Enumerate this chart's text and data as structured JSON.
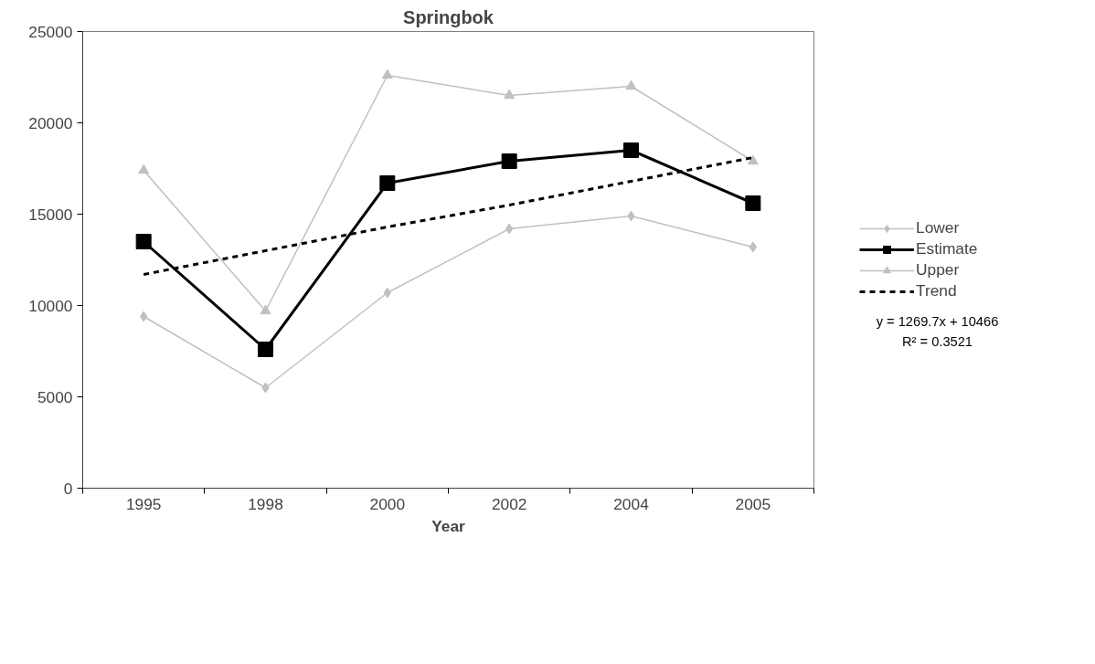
{
  "chart_data": {
    "type": "line",
    "title": "Springbok",
    "xlabel": "Year",
    "categories": [
      "1995",
      "1998",
      "2000",
      "2002",
      "2004",
      "2005"
    ],
    "series": [
      {
        "name": "Lower",
        "color": "#c0c0c0",
        "marker": "diamond",
        "line_style": "solid",
        "values": [
          9400,
          5500,
          10700,
          14200,
          14900,
          13200
        ]
      },
      {
        "name": "Estimate",
        "color": "#000000",
        "marker": "square",
        "line_style": "solid",
        "values": [
          13500,
          7600,
          16700,
          17900,
          18500,
          15600
        ]
      },
      {
        "name": "Upper",
        "color": "#c0c0c0",
        "marker": "triangle",
        "line_style": "solid",
        "values": [
          17400,
          9700,
          22600,
          21500,
          22000,
          17900
        ]
      },
      {
        "name": "Trend",
        "color": "#000000",
        "marker": "none",
        "line_style": "dashed",
        "values": [
          11700,
          13000,
          14300,
          15500,
          16800,
          18100
        ]
      }
    ],
    "ylim": [
      0,
      25000
    ],
    "yticks": [
      0,
      5000,
      10000,
      15000,
      20000,
      25000
    ],
    "grid": false,
    "legend": "right",
    "annotations": [
      "y = 1269.7x + 10466",
      "R² = 0.3521"
    ]
  }
}
